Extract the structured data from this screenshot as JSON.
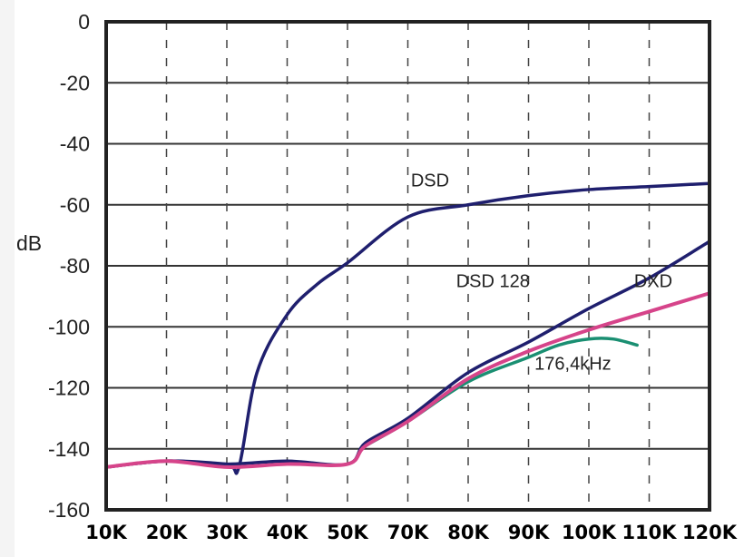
{
  "chart_data": {
    "type": "line",
    "title": "",
    "xlabel": "",
    "ylabel": "dB",
    "ylim": [
      -160,
      0
    ],
    "yticks": [
      0,
      -20,
      -40,
      -60,
      -80,
      -100,
      -120,
      -140,
      -160
    ],
    "ytick_labels": [
      "0",
      "-20",
      "-40",
      "-60",
      "-80",
      "-100",
      "-120",
      "-140",
      "-160"
    ],
    "x_categories": [
      "10K",
      "20K",
      "30K",
      "40K",
      "50K",
      "70K",
      "80K",
      "90K",
      "100K",
      "110K",
      "120K"
    ],
    "grid": {
      "horizontal": "solid",
      "vertical": "dashed"
    },
    "legend": "inline labels",
    "series": [
      {
        "name": "DSD",
        "color": "#1f1f6e",
        "x_index": [
          0,
          1,
          2,
          2.2,
          2.5,
          3,
          3.5,
          4,
          5,
          6,
          7,
          8,
          9,
          10
        ],
        "values": [
          -146,
          -144,
          -145,
          -146,
          -115,
          -96,
          -86,
          -79,
          -64,
          -60,
          -57,
          -55,
          -54,
          -53
        ]
      },
      {
        "name": "DSD 128",
        "color": "#1f1f6e",
        "x_index": [
          0,
          1,
          2,
          3,
          4,
          4.3,
          5,
          6,
          7,
          8,
          9,
          10
        ],
        "values": [
          -146,
          -144,
          -145,
          -144,
          -145,
          -138,
          -130,
          -115,
          -105,
          -94,
          -84,
          -72
        ]
      },
      {
        "name": "DXD",
        "color": "#d6448a",
        "x_index": [
          0,
          1,
          2,
          3,
          4,
          4.3,
          5,
          6,
          7,
          8,
          9,
          10
        ],
        "values": [
          -146,
          -144,
          -146,
          -145,
          -145,
          -139,
          -131,
          -117,
          -108,
          -101,
          -95,
          -89
        ]
      },
      {
        "name": "176,4kHz",
        "color": "#1a8f72",
        "x_index": [
          4.3,
          5,
          6,
          7,
          7.5,
          8,
          8.4,
          8.8
        ],
        "values": [
          -139,
          -131,
          -118,
          -110,
          -106,
          -104,
          -104,
          -106
        ]
      }
    ],
    "annotations": [
      {
        "text": "DSD",
        "x_index": 5.05,
        "y": -54
      },
      {
        "text": "DSD 128",
        "x_index": 5.8,
        "y": -87
      },
      {
        "text": "DXD",
        "x_index": 8.75,
        "y": -87
      },
      {
        "text": "176,4kHz",
        "x_index": 7.1,
        "y": -114
      }
    ]
  }
}
